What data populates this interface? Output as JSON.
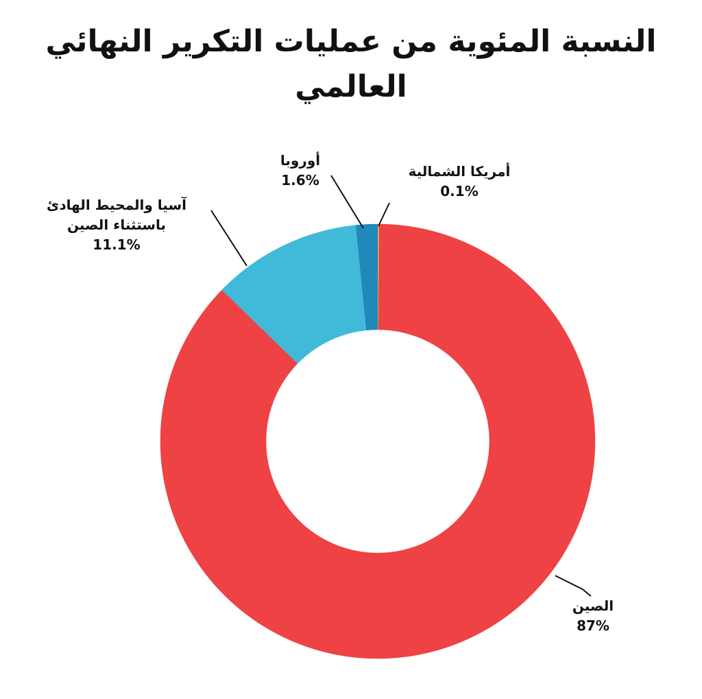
{
  "chart_data": {
    "type": "pie",
    "donut": true,
    "title": "النسبة المئوية من عمليات التكرير النهائي العالمي",
    "slices": [
      {
        "name": "أمريكا الشمالية",
        "value": 0.1,
        "value_label": "0.1%",
        "color": "#F2C94C"
      },
      {
        "name": "الصين",
        "value": 87,
        "value_label": "87%",
        "color": "#EE4244"
      },
      {
        "name": "آسيا والمحيط الهادئ باستثناء الصين",
        "value": 11.1,
        "value_label": "11.1%",
        "color": "#40BAD8"
      },
      {
        "name": "أوروبا",
        "value": 1.6,
        "value_label": "1.6%",
        "color": "#2188BA"
      }
    ]
  }
}
